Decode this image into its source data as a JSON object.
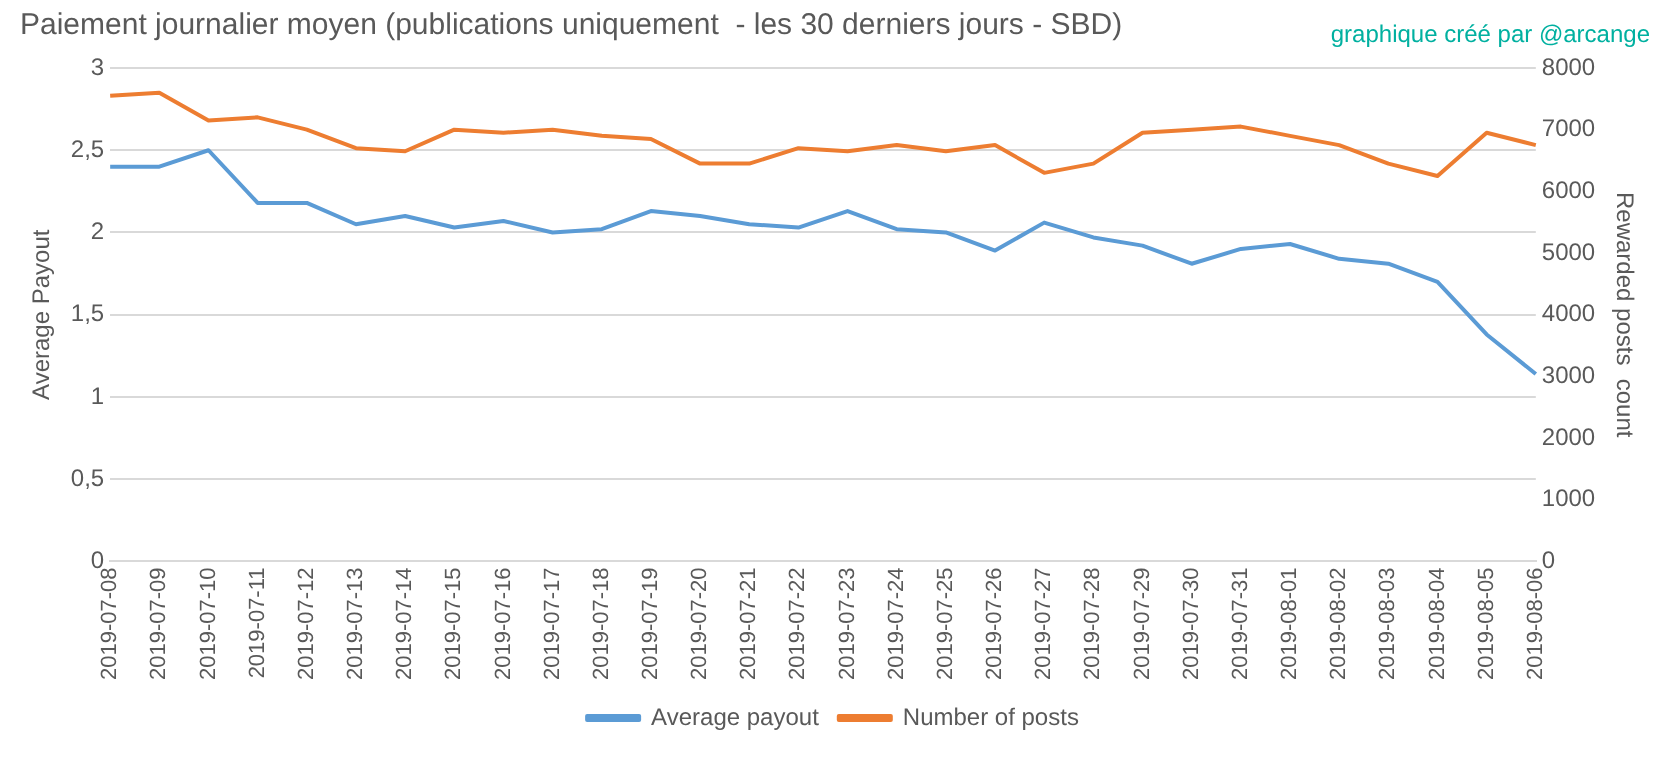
{
  "chart_data": {
    "type": "line",
    "title": "Paiement journalier moyen (publications uniquement  - les 30 derniers jours - SBD)",
    "annotations": [
      "graphique créé par @arcange"
    ],
    "ylabel": "Average Payout",
    "y2label": "Rewarded posts  count",
    "categories": [
      "2019-07-08",
      "2019-07-09",
      "2019-07-10",
      "2019-07-11",
      "2019-07-12",
      "2019-07-13",
      "2019-07-14",
      "2019-07-15",
      "2019-07-16",
      "2019-07-17",
      "2019-07-18",
      "2019-07-19",
      "2019-07-20",
      "2019-07-21",
      "2019-07-22",
      "2019-07-23",
      "2019-07-24",
      "2019-07-25",
      "2019-07-26",
      "2019-07-27",
      "2019-07-28",
      "2019-07-29",
      "2019-07-30",
      "2019-07-31",
      "2019-08-01",
      "2019-08-02",
      "2019-08-03",
      "2019-08-04",
      "2019-08-05",
      "2019-08-06"
    ],
    "series": [
      {
        "name": "Average payout",
        "color": "#5b9bd5",
        "values": [
          2.4,
          2.4,
          2.5,
          2.18,
          2.18,
          2.05,
          2.1,
          2.03,
          2.07,
          2.0,
          2.02,
          2.13,
          2.1,
          2.05,
          2.03,
          2.13,
          2.02,
          2.0,
          1.89,
          2.06,
          1.97,
          1.92,
          1.81,
          1.9,
          1.93,
          1.84,
          1.81,
          1.7,
          1.38,
          1.14
        ]
      },
      {
        "name": "Number of posts",
        "color": "#ed7d31",
        "axis": "y2",
        "values": [
          7550,
          7600,
          7150,
          7200,
          7000,
          6700,
          6650,
          7000,
          6950,
          7000,
          6900,
          6850,
          6450,
          6450,
          6700,
          6650,
          6750,
          6650,
          6750,
          6300,
          6450,
          6950,
          7000,
          7050,
          6900,
          6750,
          6450,
          6250,
          6950,
          6750
        ]
      }
    ],
    "ylim": [
      0,
      3
    ],
    "yticks": [
      0,
      {
        "value": 0.5,
        "label": "0,5"
      },
      1,
      {
        "value": 1.5,
        "label": "1,5"
      },
      2,
      {
        "value": 2.5,
        "label": "2,5"
      },
      3
    ],
    "y2lim": [
      0,
      8000
    ],
    "y2ticks": [
      0,
      1000,
      2000,
      3000,
      4000,
      5000,
      6000,
      7000,
      8000
    ],
    "grid": "y",
    "legend": "bottom",
    "marker": "none",
    "line_style": "solid"
  }
}
